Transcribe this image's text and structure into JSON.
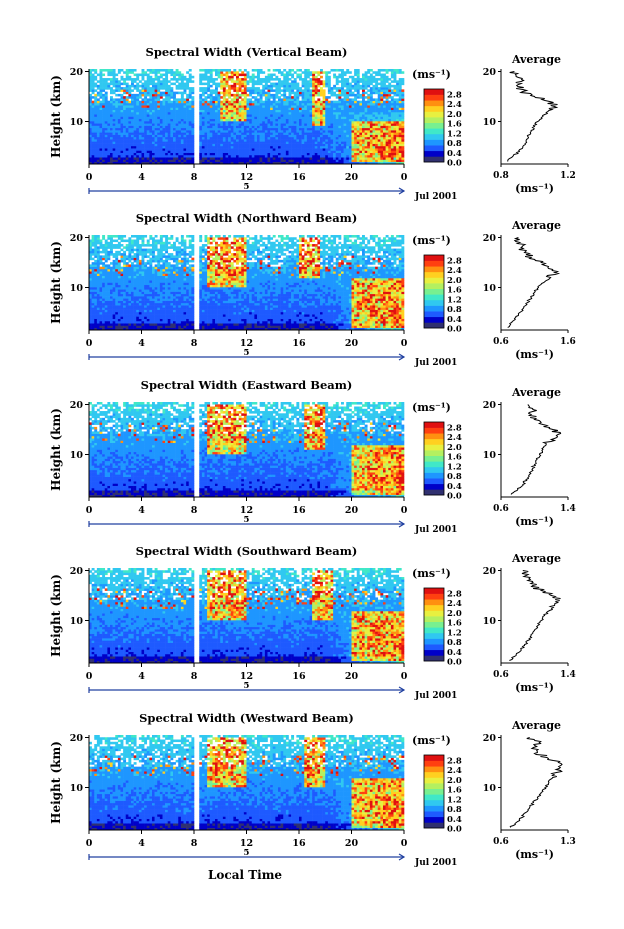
{
  "figure": {
    "xlabel": "Local Time",
    "ylabel": "Height (km)",
    "date_label": "Jul 2001",
    "day_marker": "5",
    "colorbar_unit": "(ms⁻¹)",
    "colorbar_ticks": [
      "0.0",
      "0.4",
      "0.8",
      "1.2",
      "1.6",
      "2.0",
      "2.4",
      "2.8"
    ],
    "average_title": "Average",
    "average_unit": "(ms⁻¹)",
    "colors": [
      "#303070",
      "#0000c8",
      "#1e5aff",
      "#1e96ff",
      "#30c8f0",
      "#40e8c8",
      "#78f090",
      "#b4f060",
      "#e8f040",
      "#ffd020",
      "#ff9010",
      "#ff4010",
      "#e01010"
    ]
  },
  "chart_data": [
    {
      "type": "heatmap",
      "title": "Spectral Width (Vertical Beam)",
      "xlabel": "Local Time",
      "ylabel": "Height (km)",
      "xticks": [
        "0",
        "4",
        "8",
        "12",
        "16",
        "20",
        "0"
      ],
      "yticks": [
        "10",
        "20"
      ],
      "xlim": [
        0,
        24
      ],
      "ylim": [
        1.5,
        20.5
      ],
      "colorbar": {
        "label": "(ms⁻¹)",
        "range": [
          0.0,
          3.0
        ],
        "ticks": [
          "0.0",
          "0.4",
          "0.8",
          "1.2",
          "1.6",
          "2.0",
          "2.4",
          "2.8"
        ]
      },
      "data_gap_hours": [
        8.0,
        8.4
      ],
      "high_width_regions": [
        {
          "time_hours": [
            10,
            12
          ],
          "height_km": [
            10,
            20
          ]
        },
        {
          "time_hours": [
            17,
            18
          ],
          "height_km": [
            9,
            20
          ]
        },
        {
          "time_hours": [
            20,
            24
          ],
          "height_km": [
            2,
            10
          ]
        }
      ],
      "average_profile": {
        "title": "Average",
        "xlabel": "(ms⁻¹)",
        "xticks": [
          "0.8",
          "1.2"
        ],
        "yticks": [
          "10",
          "20"
        ],
        "xlim": [
          0.8,
          1.2
        ],
        "ylim": [
          1.5,
          20.5
        ],
        "height_km": [
          2,
          3,
          4,
          5,
          6,
          7,
          8,
          9,
          10,
          11,
          12,
          13,
          14,
          15,
          16,
          17,
          18,
          19,
          20
        ],
        "value": [
          0.84,
          0.87,
          0.91,
          0.93,
          0.95,
          0.96,
          0.98,
          1.0,
          1.02,
          1.05,
          1.08,
          1.12,
          1.09,
          1.0,
          0.93,
          0.9,
          0.92,
          0.89,
          0.88
        ]
      }
    },
    {
      "type": "heatmap",
      "title": "Spectral Width (Northward Beam)",
      "xlabel": "Local Time",
      "ylabel": "Height (km)",
      "xticks": [
        "0",
        "4",
        "8",
        "12",
        "16",
        "20",
        "0"
      ],
      "yticks": [
        "10",
        "20"
      ],
      "xlim": [
        0,
        24
      ],
      "ylim": [
        1.5,
        20.5
      ],
      "colorbar": {
        "label": "(ms⁻¹)",
        "range": [
          0.0,
          3.0
        ],
        "ticks": [
          "0.0",
          "0.4",
          "0.8",
          "1.2",
          "1.6",
          "2.0",
          "2.4",
          "2.8"
        ]
      },
      "data_gap_hours": [
        8.0,
        8.4
      ],
      "high_width_regions": [
        {
          "time_hours": [
            9,
            12
          ],
          "height_km": [
            10,
            20
          ]
        },
        {
          "time_hours": [
            16,
            17.5
          ],
          "height_km": [
            12,
            20
          ]
        },
        {
          "time_hours": [
            20,
            24
          ],
          "height_km": [
            2,
            12
          ]
        }
      ],
      "average_profile": {
        "title": "Average",
        "xlabel": "(ms⁻¹)",
        "xticks": [
          "0.6",
          "1.6"
        ],
        "yticks": [
          "10",
          "20"
        ],
        "xlim": [
          0.6,
          1.6
        ],
        "ylim": [
          1.5,
          20.5
        ],
        "height_km": [
          2,
          3,
          4,
          5,
          6,
          7,
          8,
          9,
          10,
          11,
          12,
          13,
          14,
          15,
          16,
          17,
          18,
          19,
          20
        ],
        "value": [
          0.7,
          0.76,
          0.82,
          0.88,
          0.94,
          1.0,
          1.05,
          1.1,
          1.16,
          1.24,
          1.34,
          1.4,
          1.3,
          1.2,
          1.05,
          0.95,
          0.9,
          0.88,
          0.86
        ]
      }
    },
    {
      "type": "heatmap",
      "title": "Spectral Width (Eastward Beam)",
      "xlabel": "Local Time",
      "ylabel": "Height (km)",
      "xticks": [
        "0",
        "4",
        "8",
        "12",
        "16",
        "20",
        "0"
      ],
      "yticks": [
        "10",
        "20"
      ],
      "xlim": [
        0,
        24
      ],
      "ylim": [
        1.5,
        20.5
      ],
      "colorbar": {
        "label": "(ms⁻¹)",
        "range": [
          0.0,
          3.0
        ],
        "ticks": [
          "0.0",
          "0.4",
          "0.8",
          "1.2",
          "1.6",
          "2.0",
          "2.4",
          "2.8"
        ]
      },
      "data_gap_hours": [
        8.0,
        8.4
      ],
      "high_width_regions": [
        {
          "time_hours": [
            9,
            12
          ],
          "height_km": [
            10,
            20
          ]
        },
        {
          "time_hours": [
            16.5,
            18
          ],
          "height_km": [
            11,
            20
          ]
        },
        {
          "time_hours": [
            20,
            24
          ],
          "height_km": [
            2,
            12
          ]
        }
      ],
      "average_profile": {
        "title": "Average",
        "xlabel": "(ms⁻¹)",
        "xticks": [
          "0.6",
          "1.4"
        ],
        "yticks": [
          "10",
          "20"
        ],
        "xlim": [
          0.6,
          1.4
        ],
        "ylim": [
          1.5,
          20.5
        ],
        "height_km": [
          2,
          3,
          4,
          5,
          6,
          7,
          8,
          9,
          10,
          11,
          12,
          13,
          14,
          15,
          16,
          17,
          18,
          19,
          20
        ],
        "value": [
          0.72,
          0.8,
          0.86,
          0.9,
          0.94,
          0.97,
          1.0,
          1.03,
          1.06,
          1.1,
          1.14,
          1.2,
          1.28,
          1.22,
          1.1,
          1.0,
          0.96,
          0.98,
          0.92
        ]
      }
    },
    {
      "type": "heatmap",
      "title": "Spectral Width (Southward Beam)",
      "xlabel": "Local Time",
      "ylabel": "Height (km)",
      "xticks": [
        "0",
        "4",
        "8",
        "12",
        "16",
        "20",
        "0"
      ],
      "yticks": [
        "10",
        "20"
      ],
      "xlim": [
        0,
        24
      ],
      "ylim": [
        1.5,
        20.5
      ],
      "colorbar": {
        "label": "(ms⁻¹)",
        "range": [
          0.0,
          3.0
        ],
        "ticks": [
          "0.0",
          "0.4",
          "0.8",
          "1.2",
          "1.6",
          "2.0",
          "2.4",
          "2.8"
        ]
      },
      "data_gap_hours": [
        8.0,
        8.4
      ],
      "high_width_regions": [
        {
          "time_hours": [
            9,
            12
          ],
          "height_km": [
            10,
            20
          ]
        },
        {
          "time_hours": [
            17,
            18.5
          ],
          "height_km": [
            10,
            20
          ]
        },
        {
          "time_hours": [
            20,
            24
          ],
          "height_km": [
            2,
            12
          ]
        }
      ],
      "average_profile": {
        "title": "Average",
        "xlabel": "(ms⁻¹)",
        "xticks": [
          "0.6",
          "1.4"
        ],
        "yticks": [
          "10",
          "20"
        ],
        "xlim": [
          0.6,
          1.4
        ],
        "ylim": [
          1.5,
          20.5
        ],
        "height_km": [
          2,
          3,
          4,
          5,
          6,
          7,
          8,
          9,
          10,
          11,
          12,
          13,
          14,
          15,
          16,
          17,
          18,
          19,
          20
        ],
        "value": [
          0.7,
          0.78,
          0.84,
          0.88,
          0.92,
          0.96,
          1.0,
          1.04,
          1.08,
          1.12,
          1.18,
          1.24,
          1.3,
          1.2,
          1.08,
          0.98,
          0.92,
          0.9,
          0.86
        ]
      }
    },
    {
      "type": "heatmap",
      "title": "Spectral Width (Westward Beam)",
      "xlabel": "Local Time",
      "ylabel": "Height (km)",
      "xticks": [
        "0",
        "4",
        "8",
        "12",
        "16",
        "20",
        "0"
      ],
      "yticks": [
        "10",
        "20"
      ],
      "xlim": [
        0,
        24
      ],
      "ylim": [
        1.5,
        20.5
      ],
      "colorbar": {
        "label": "(ms⁻¹)",
        "range": [
          0.0,
          3.0
        ],
        "ticks": [
          "0.0",
          "0.4",
          "0.8",
          "1.2",
          "1.6",
          "2.0",
          "2.4",
          "2.8"
        ]
      },
      "data_gap_hours": [
        8.0,
        8.4
      ],
      "high_width_regions": [
        {
          "time_hours": [
            9,
            12
          ],
          "height_km": [
            10,
            20
          ]
        },
        {
          "time_hours": [
            16.5,
            18
          ],
          "height_km": [
            10,
            20
          ]
        },
        {
          "time_hours": [
            20,
            24
          ],
          "height_km": [
            2,
            12
          ]
        }
      ],
      "average_profile": {
        "title": "Average",
        "xlabel": "(ms⁻¹)",
        "xticks": [
          "0.6",
          "1.3"
        ],
        "yticks": [
          "10",
          "20"
        ],
        "xlim": [
          0.6,
          1.3
        ],
        "ylim": [
          1.5,
          20.5
        ],
        "height_km": [
          2,
          3,
          4,
          5,
          6,
          7,
          8,
          9,
          10,
          11,
          12,
          13,
          14,
          15,
          16,
          17,
          18,
          19,
          20
        ],
        "value": [
          0.7,
          0.76,
          0.82,
          0.86,
          0.9,
          0.94,
          0.98,
          1.02,
          1.06,
          1.1,
          1.14,
          1.18,
          1.22,
          1.2,
          1.08,
          0.98,
          0.94,
          1.0,
          0.9
        ]
      }
    }
  ]
}
